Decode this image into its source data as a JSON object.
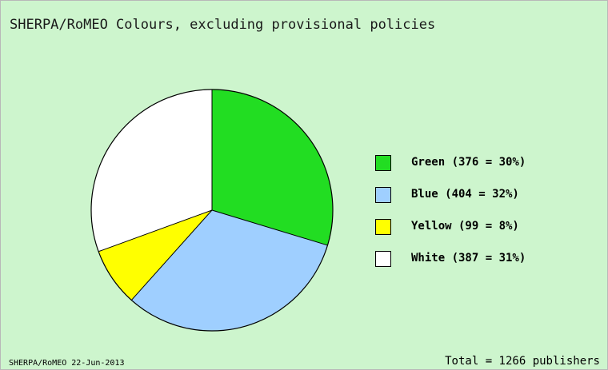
{
  "chart_data": {
    "type": "pie",
    "title": "SHERPA/RoMEO Colours, excluding provisional policies",
    "slices": [
      {
        "name": "Green",
        "value": 376,
        "percent": 30,
        "color": "#22dd22",
        "label": "Green (376 = 30%)"
      },
      {
        "name": "Blue",
        "value": 404,
        "percent": 32,
        "color": "#9fcfff",
        "label": "Blue (404 = 32%)"
      },
      {
        "name": "Yellow",
        "value": 99,
        "percent": 8,
        "color": "#ffff00",
        "label": "Yellow (99 = 8%)"
      },
      {
        "name": "White",
        "value": 387,
        "percent": 31,
        "color": "#ffffff",
        "label": "White (387 = 31%)"
      }
    ],
    "total_label": "Total = 1266 publishers",
    "legend_position": "right",
    "background_color": "#cdf5cd"
  },
  "footer": {
    "source": "SHERPA/RoMEO 22-Jun-2013"
  }
}
